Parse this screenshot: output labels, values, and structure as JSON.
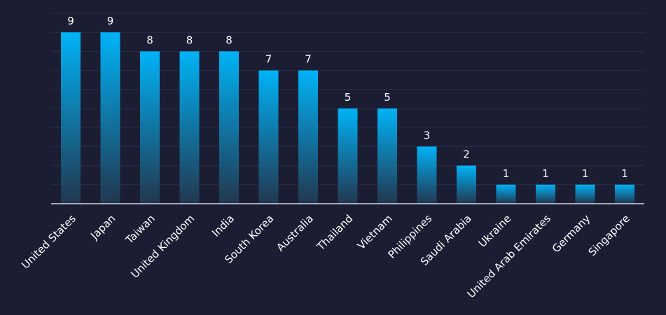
{
  "colors": {
    "background": "#1b1d33",
    "bar_top": "#00b3f7",
    "bar_bottom": "#22374f",
    "grid": "#2c2f4a",
    "text": "#ffffff"
  },
  "chart_data": {
    "type": "bar",
    "title": "",
    "xlabel": "",
    "ylabel": "",
    "ylim": [
      0,
      10
    ],
    "grid": true,
    "categories": [
      "United States",
      "Japan",
      "Taiwan",
      "United Kingdom",
      "India",
      "South Korea",
      "Australia",
      "Thailand",
      "Vietnam",
      "Philippines",
      "Saudi Arabia",
      "Ukraine",
      "United Arab Emirates",
      "Germany",
      "Singapore"
    ],
    "values": [
      9,
      9,
      8,
      8,
      8,
      7,
      7,
      5,
      5,
      3,
      2,
      1,
      1,
      1,
      1
    ]
  }
}
